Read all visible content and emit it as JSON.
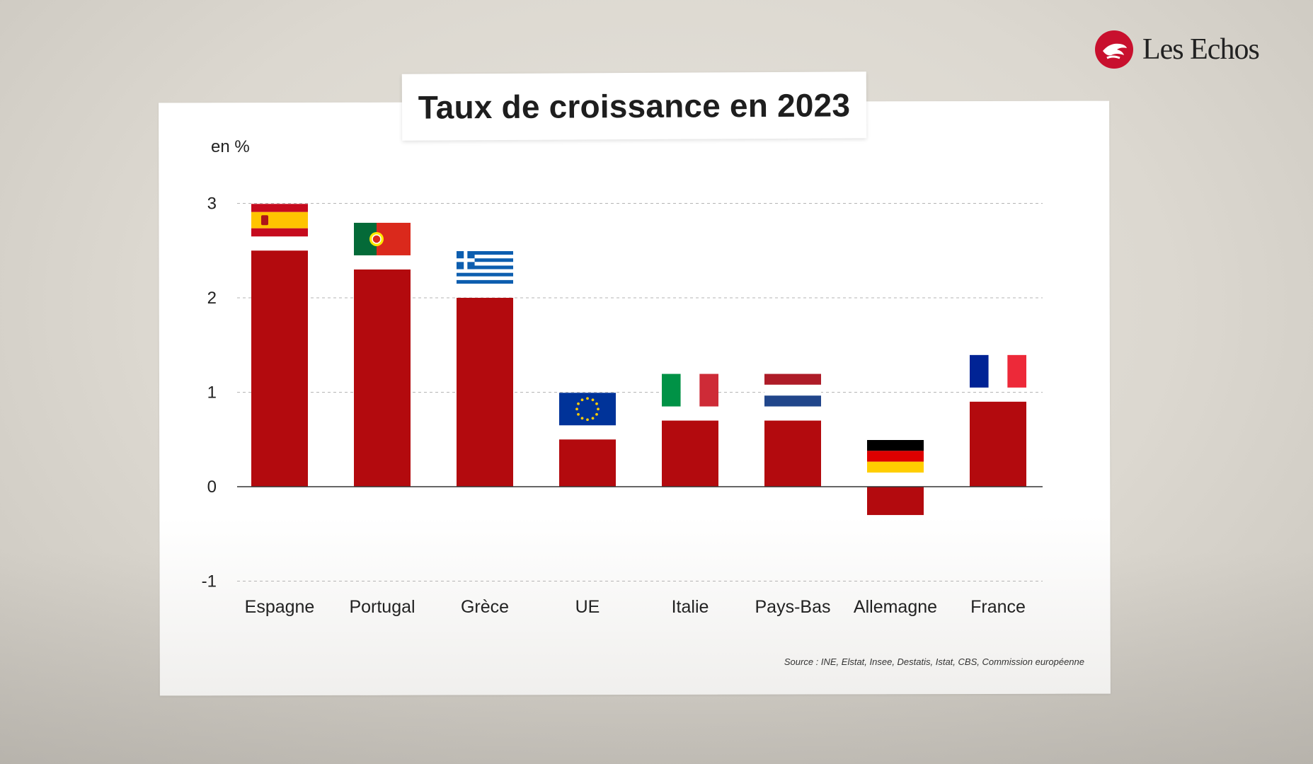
{
  "brand": {
    "name": "Les Echos",
    "accent": "#c8102e"
  },
  "chart_data": {
    "type": "bar",
    "title": "Taux de croissance en 2023",
    "ylabel": "en %",
    "xlabel": "",
    "ylim": [
      -1,
      3
    ],
    "yticks": [
      3,
      2,
      1,
      0,
      -1
    ],
    "grid": true,
    "bar_color": "#b30a0e",
    "categories": [
      "Espagne",
      "Portugal",
      "Grèce",
      "UE",
      "Italie",
      "Pays-Bas",
      "Allemagne",
      "France"
    ],
    "values": [
      2.5,
      2.3,
      2.0,
      0.5,
      0.7,
      0.7,
      -0.3,
      0.9
    ],
    "flags": [
      "flag-spain-icon",
      "flag-portugal-icon",
      "flag-greece-icon",
      "flag-eu-icon",
      "flag-italy-icon",
      "flag-netherlands-icon",
      "flag-germany-icon",
      "flag-france-icon"
    ],
    "source": "Source : INE, Elstat, Insee, Destatis, Istat, CBS, Commission européenne"
  }
}
